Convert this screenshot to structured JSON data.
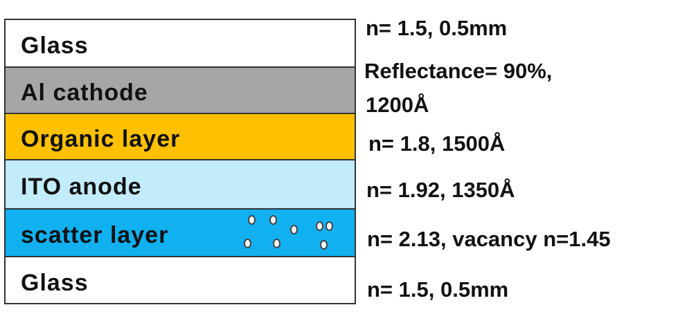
{
  "layers": [
    {
      "label": "Glass",
      "color": "#ffffff",
      "annotation": "n= 1.5, 0.5mm"
    },
    {
      "label": "Al cathode",
      "color": "#a6a6a6",
      "annotation_lines": [
        "Reflectance= 90%,",
        "1200Å"
      ]
    },
    {
      "label": "Organic layer",
      "color": "#ffc000",
      "annotation": "n= 1.8, 1500Å"
    },
    {
      "label": "ITO anode",
      "color": "#c2ecfb",
      "annotation": "n= 1.92, 1350Å"
    },
    {
      "label": "scatter layer",
      "color": "#11b0f0",
      "annotation": "n= 2.13, vacancy n=1.45"
    },
    {
      "label": "Glass",
      "color": "#ffffff",
      "annotation": "n= 1.5, 0.5mm"
    }
  ]
}
